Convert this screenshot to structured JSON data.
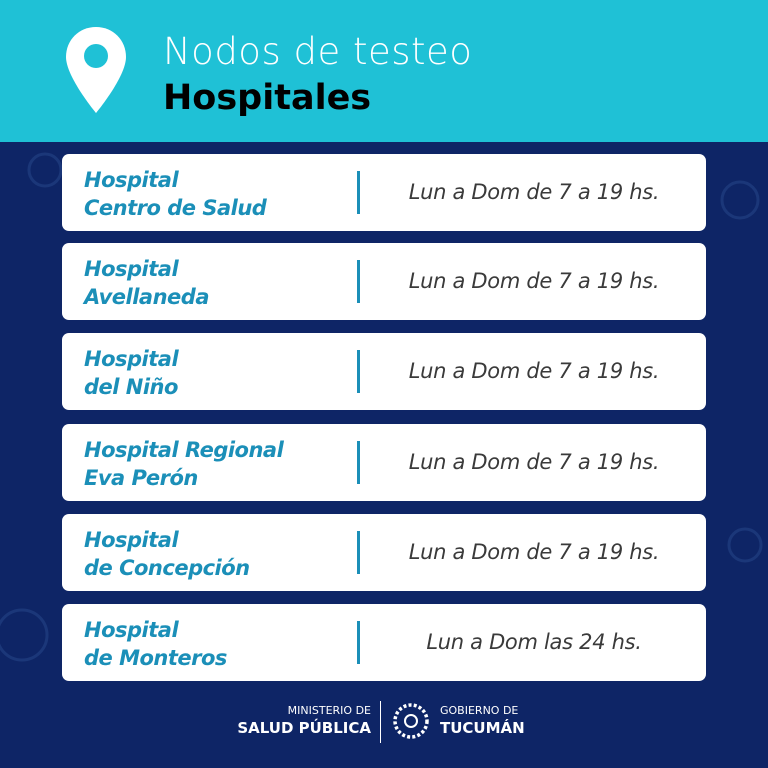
{
  "header": {
    "title_line1": "Nodos de testeo",
    "title_line2": "Hospitales",
    "icon": "map-pin-icon"
  },
  "colors": {
    "header_bg": "#1fc1d6",
    "background": "#0e2566",
    "accent": "#1b8fb8"
  },
  "hospitals": [
    {
      "name_line1": "Hospital",
      "name_line2": "Centro de Salud",
      "hours": "Lun a Dom de 7 a 19 hs."
    },
    {
      "name_line1": "Hospital",
      "name_line2": "Avellaneda",
      "hours": "Lun a Dom de 7 a 19 hs."
    },
    {
      "name_line1": "Hospital",
      "name_line2": "del Niño",
      "hours": "Lun a Dom de 7 a 19 hs."
    },
    {
      "name_line1": "Hospital Regional",
      "name_line2": "Eva Perón",
      "hours": "Lun a Dom de 7 a 19 hs."
    },
    {
      "name_line1": "Hospital",
      "name_line2": "de Concepción",
      "hours": "Lun a Dom de 7 a 19 hs."
    },
    {
      "name_line1": "Hospital",
      "name_line2": "de Monteros",
      "hours": "Lun a Dom las 24 hs."
    }
  ],
  "footer": {
    "ministry_line1": "MINISTERIO DE",
    "ministry_line2": "SALUD PÚBLICA",
    "gov_line1": "GOBIERNO DE",
    "gov_line2": "TUCUMÁN"
  }
}
